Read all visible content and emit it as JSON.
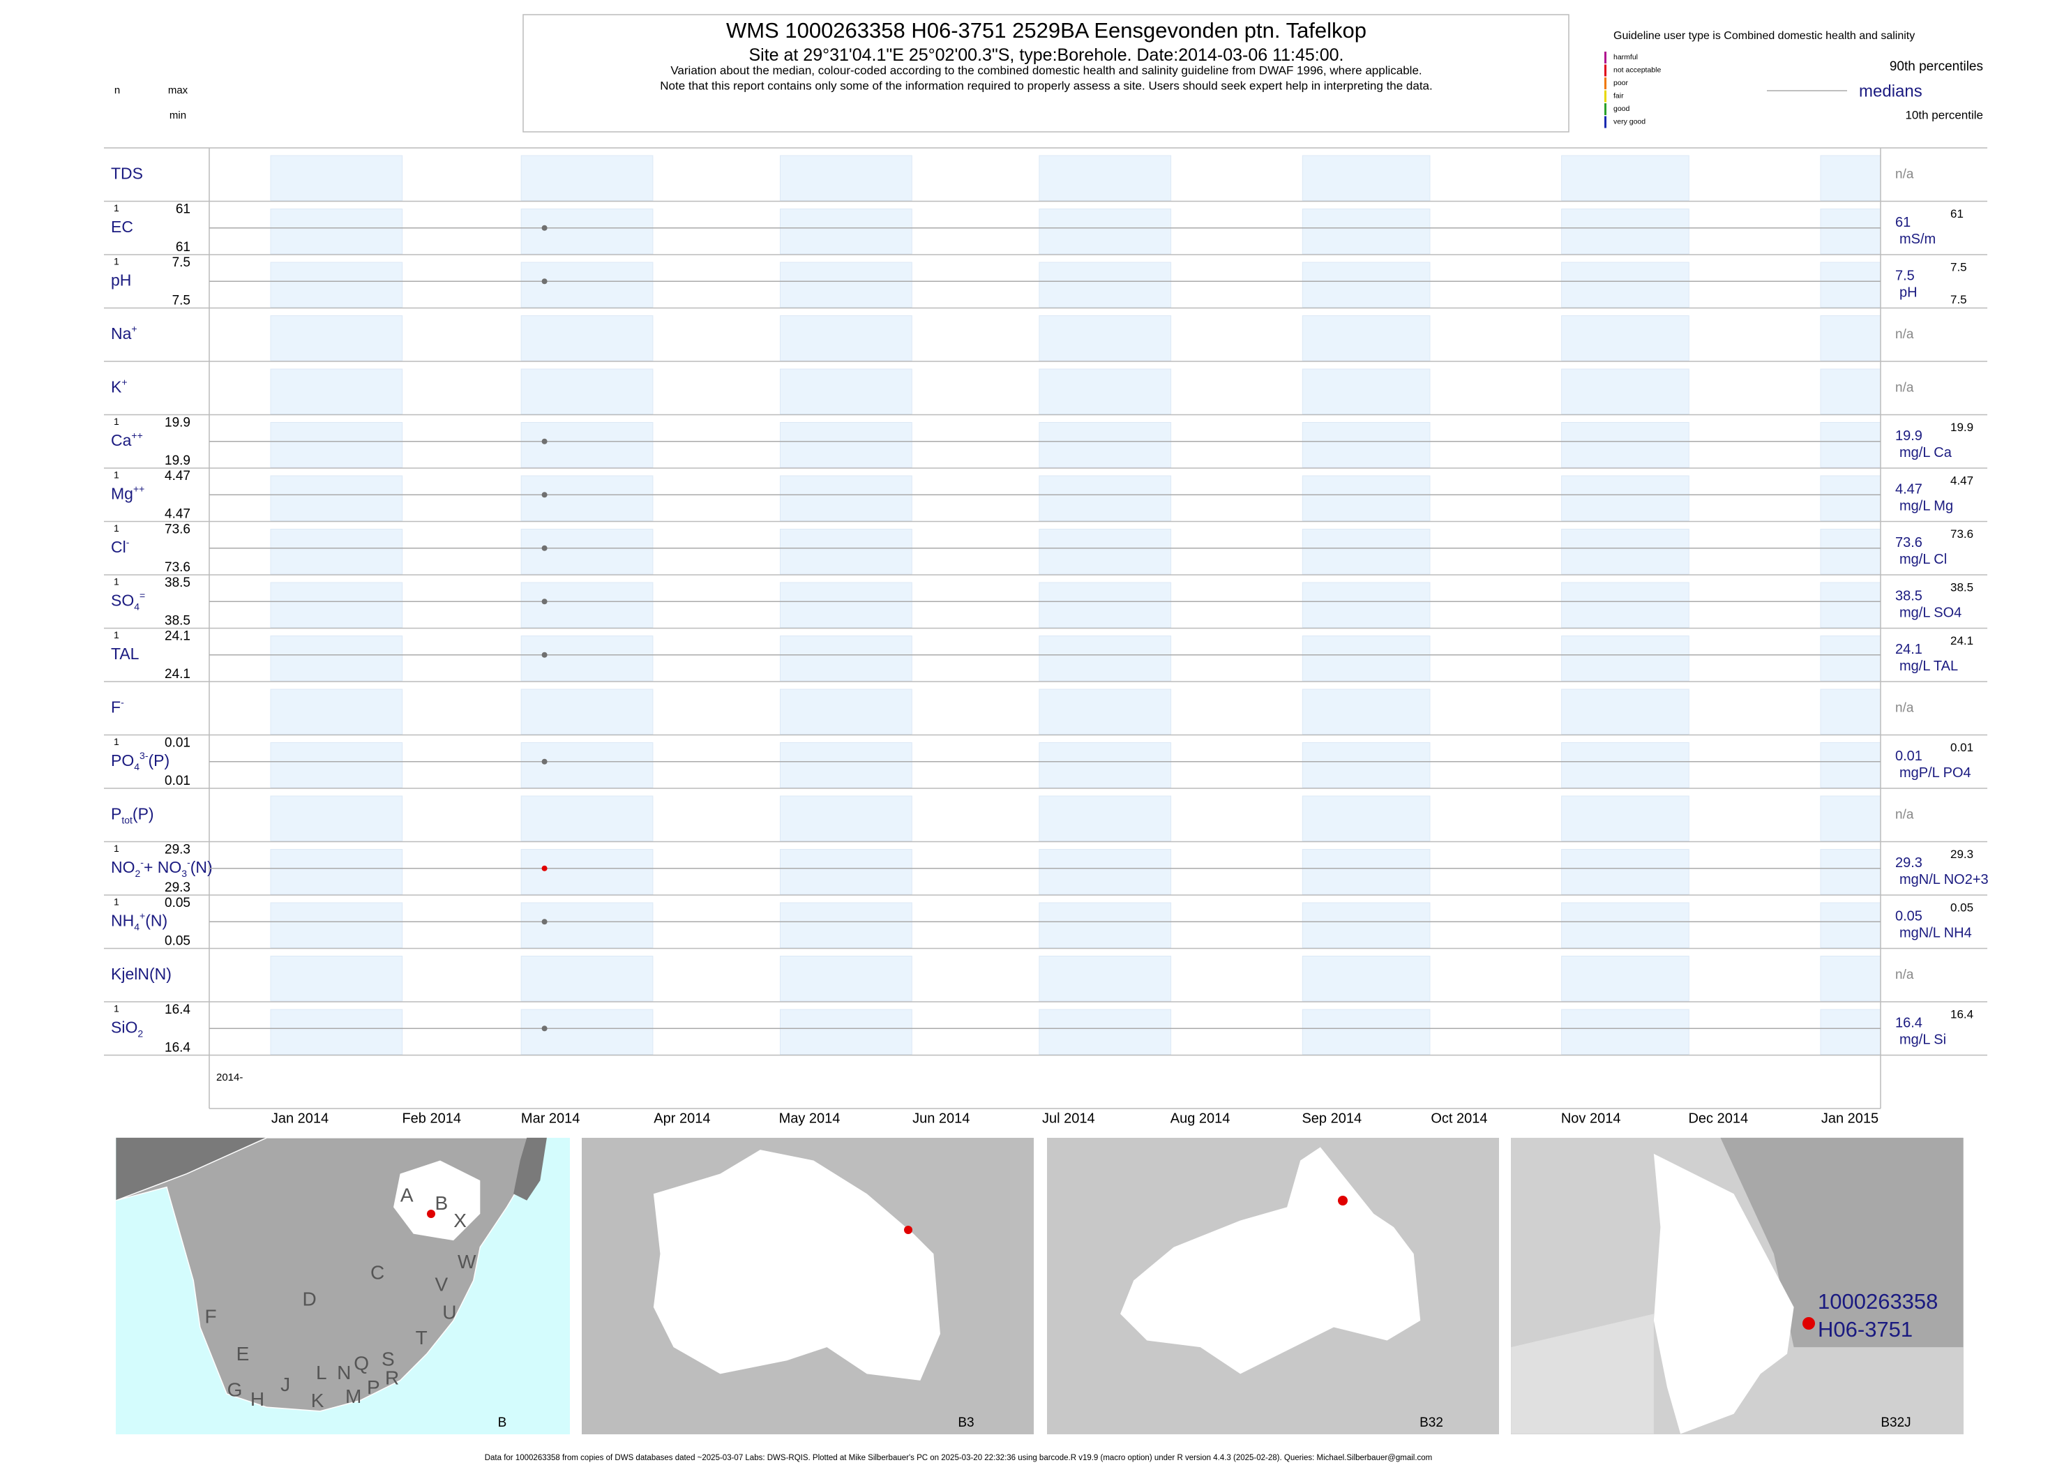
{
  "header": {
    "title": "WMS 1000263358 H06-3751 2529BA Eensgevonden ptn. Tafelkop",
    "subtitle_start": "Site at 29°31'04.1\"E 25°02'00.3\"S, type:Borehole. Date:",
    "sample_date": "2014-03-06 11:45:00",
    "subtitle_end": ".",
    "note1": "Variation about the median,  colour-coded according to the combined domestic health and salinity guideline from DWAF 1996, where applicable.",
    "note2": "Note that this report contains only some of the information required to properly assess a site. Users should seek expert help in interpreting the data."
  },
  "left_key": {
    "n": "n",
    "max": "max",
    "min": "min"
  },
  "legend": {
    "guideline": "Guideline user type is Combined domestic health and salinity",
    "classes": [
      {
        "name": "harmful",
        "color": "#b0128f"
      },
      {
        "name": "not acceptable",
        "color": "#e0001a"
      },
      {
        "name": "poor",
        "color": "#f07800"
      },
      {
        "name": "fair",
        "color": "#e8d800"
      },
      {
        "name": "good",
        "color": "#2aa02a"
      },
      {
        "name": "very good",
        "color": "#1a2ab0"
      }
    ],
    "p90": "90th percentiles",
    "medians": "medians",
    "p10": "10th percentile"
  },
  "rows": [
    {
      "label": [
        {
          "text": "TDS"
        }
      ],
      "na": "n/a"
    },
    {
      "label": [
        {
          "text": "EC"
        }
      ],
      "n": 1,
      "max": 61,
      "min": 61,
      "median": 61,
      "unit": "mS/m",
      "p90": 61,
      "color": "#707070"
    },
    {
      "label": [
        {
          "text": "pH"
        }
      ],
      "n": 1,
      "max": 7.5,
      "min": 7.5,
      "median": 7.5,
      "unit": "pH",
      "p90": 7.5,
      "p10": 7.5,
      "color": "#707070"
    },
    {
      "label": [
        {
          "text": "Na"
        },
        {
          "sup": "+"
        }
      ],
      "na": "n/a"
    },
    {
      "label": [
        {
          "text": "K"
        },
        {
          "sup": "+"
        }
      ],
      "na": "n/a"
    },
    {
      "label": [
        {
          "text": "Ca"
        },
        {
          "sup": "++"
        }
      ],
      "n": 1,
      "max": 19.9,
      "min": 19.9,
      "median": 19.9,
      "unit": "mg/L Ca",
      "p90": 19.9,
      "color": "#707070"
    },
    {
      "label": [
        {
          "text": "Mg"
        },
        {
          "sup": "++"
        }
      ],
      "n": 1,
      "max": 4.47,
      "min": 4.47,
      "median": 4.47,
      "unit": "mg/L Mg",
      "p90": 4.47,
      "color": "#707070"
    },
    {
      "label": [
        {
          "text": "Cl"
        },
        {
          "sup": "-"
        }
      ],
      "n": 1,
      "max": 73.6,
      "min": 73.6,
      "median": 73.6,
      "unit": "mg/L Cl",
      "p90": 73.6,
      "color": "#707070"
    },
    {
      "label": [
        {
          "text": "SO"
        },
        {
          "sub": "4"
        },
        {
          "sup": "="
        }
      ],
      "n": 1,
      "max": 38.5,
      "min": 38.5,
      "median": 38.5,
      "unit": "mg/L SO4",
      "p90": 38.5,
      "color": "#707070"
    },
    {
      "label": [
        {
          "text": "TAL"
        }
      ],
      "n": 1,
      "max": 24.1,
      "min": 24.1,
      "median": 24.1,
      "unit": "mg/L TAL",
      "p90": 24.1,
      "color": "#707070"
    },
    {
      "label": [
        {
          "text": "F"
        },
        {
          "sup": "-"
        }
      ],
      "na": "n/a"
    },
    {
      "label": [
        {
          "text": "PO"
        },
        {
          "sub": "4"
        },
        {
          "sup": "3-"
        },
        {
          "text": "(P)"
        }
      ],
      "n": 1,
      "max": 0.01,
      "min": 0.01,
      "median": 0.01,
      "unit": "mgP/L PO4",
      "p90": 0.01,
      "color": "#707070"
    },
    {
      "label": [
        {
          "text": "P"
        },
        {
          "sub": "tot"
        },
        {
          "text": "(P)"
        }
      ],
      "na": "n/a"
    },
    {
      "label": [
        {
          "text": "NO"
        },
        {
          "sub": "2"
        },
        {
          "sup": "-"
        },
        {
          "text": "+ NO"
        },
        {
          "sub": "3"
        },
        {
          "sup": "-"
        },
        {
          "text": "(N)"
        }
      ],
      "n": 1,
      "max": 29.3,
      "min": 29.3,
      "median": 29.3,
      "unit": "mgN/L NO2+3",
      "p90": 29.3,
      "color": "#e00000"
    },
    {
      "label": [
        {
          "text": "NH"
        },
        {
          "sub": "4"
        },
        {
          "sup": "+"
        },
        {
          "text": "(N)"
        }
      ],
      "n": 1,
      "max": 0.05,
      "min": 0.05,
      "median": 0.05,
      "unit": "mgN/L NH4",
      "p90": 0.05,
      "color": "#707070"
    },
    {
      "label": [
        {
          "text": "KjelN(N)"
        }
      ],
      "na": "n/a"
    },
    {
      "label": [
        {
          "text": "SiO"
        },
        {
          "sub": "2"
        }
      ],
      "n": 1,
      "max": 16.4,
      "min": 16.4,
      "median": 16.4,
      "unit": "mg/L Si",
      "p90": 16.4,
      "color": "#707070"
    }
  ],
  "x_axis": {
    "year_label": "2014-",
    "months": [
      "Jan 2014",
      "Feb 2014",
      "Mar 2014",
      "Apr 2014",
      "May 2014",
      "Jun 2014",
      "Jul 2014",
      "Aug 2014",
      "Sep 2014",
      "Oct 2014",
      "Nov 2014",
      "Dec 2014",
      "Jan 2015"
    ]
  },
  "maps": [
    {
      "caption": "B",
      "labels": [
        "A",
        "B",
        "X",
        "C",
        "W",
        "D",
        "V",
        "U",
        "F",
        "E",
        "T",
        "J",
        "L",
        "N",
        "Q",
        "S",
        "G",
        "H",
        "K",
        "M",
        "P",
        "R"
      ]
    },
    {
      "caption": "B3"
    },
    {
      "caption": "B32"
    },
    {
      "caption": "B32J",
      "site_id": "1000263358",
      "site_name": "H06-3751"
    }
  ],
  "footer": "Data for 1000263358 from copies of DWS databases dated ~2025-03-07 Labs: DWS-RQIS. Plotted at Mike Silberbauer's PC on 2025-03-20 22:32:36 using barcode.R v19.9 (macro option) under R version 4.4.3 (2025-02-28). Queries: Michael.Silberbauer@gmail.com"
}
